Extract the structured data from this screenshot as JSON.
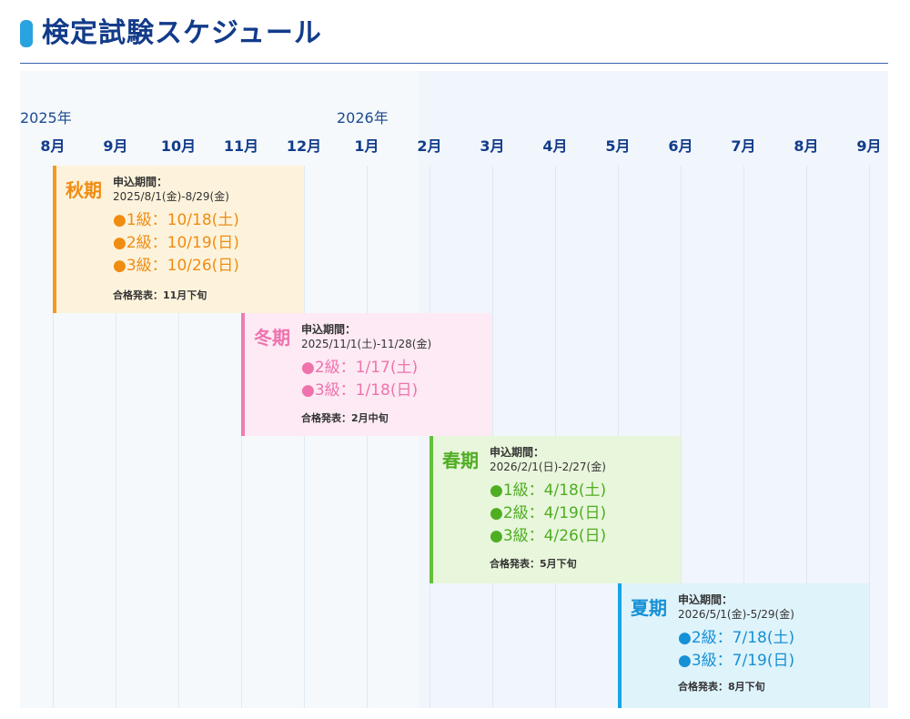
{
  "header": {
    "title": "検定試験スケジュール"
  },
  "timeline": {
    "years": [
      {
        "label": "2025年",
        "left": 22
      },
      {
        "label": "2026年",
        "left": 370
      }
    ],
    "months": [
      "8月",
      "9月",
      "10月",
      "11月",
      "12月",
      "1月",
      "2月",
      "3月",
      "4月",
      "5月",
      "6月",
      "7月",
      "8月",
      "9月"
    ]
  },
  "sessions": {
    "autumn": {
      "season": "秋期",
      "application_label": "申込期間：",
      "application_period": "2025/8/1(金)-8/29(金)",
      "exams": [
        "●1級：10/18(土)",
        "●2級：10/19(日)",
        "●3級：10/26(日)"
      ],
      "announcement": "合格発表：11月下旬",
      "accent_color": "#f08c12"
    },
    "winter": {
      "season": "冬期",
      "application_label": "申込期間：",
      "application_period": "2025/11/1(土)-11/28(金)",
      "exams": [
        "●2級：1/17(土)",
        "●3級：1/18(日)"
      ],
      "announcement": "合格発表：2月中旬",
      "accent_color": "#ee73ad"
    },
    "spring": {
      "season": "春期",
      "application_label": "申込期間：",
      "application_period": "2026/2/1(日)-2/27(金)",
      "exams": [
        "●1級：4/18(土)",
        "●2級：4/19(日)",
        "●3級：4/26(日)"
      ],
      "announcement": "合格発表：5月下旬",
      "accent_color": "#4fad22"
    },
    "summer": {
      "season": "夏期",
      "application_label": "申込期間：",
      "application_period": "2026/5/1(金)-5/29(金)",
      "exams": [
        "●2級：7/18(土)",
        "●3級：7/19(日)"
      ],
      "announcement": "合格発表：8月下旬",
      "accent_color": "#1690d6"
    }
  }
}
